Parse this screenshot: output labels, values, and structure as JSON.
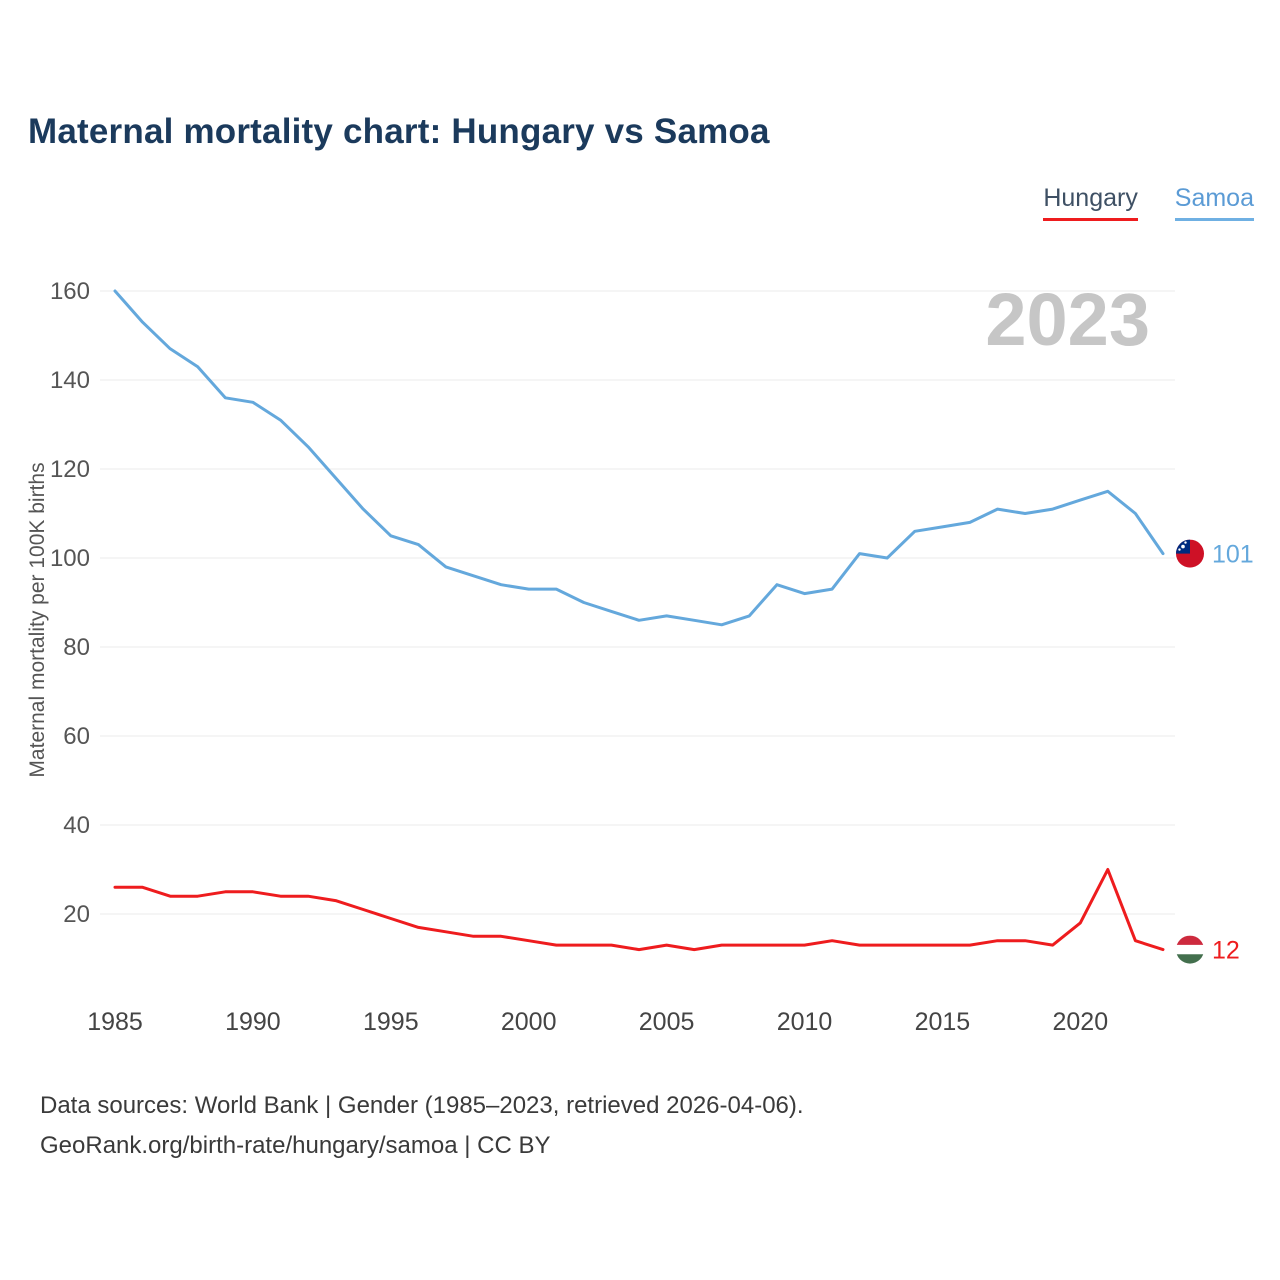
{
  "page": {
    "title": "Maternal mortality chart: Hungary vs Samoa",
    "watermark": "2023",
    "footer_line1": "Data sources: World Bank | Gender (1985–2023, retrieved 2026-04-06).",
    "footer_line2": "GeoRank.org/birth-rate/hungary/samoa | CC BY"
  },
  "legend": [
    {
      "label": "Hungary",
      "underline_color": "#ee1c1e",
      "text_color": "#3e5064"
    },
    {
      "label": "Samoa",
      "underline_color": "#6fb0e3",
      "text_color": "#5b9bd5"
    }
  ],
  "chart_data": {
    "type": "line",
    "title": "Maternal mortality chart: Hungary vs Samoa",
    "xlabel": "",
    "ylabel": "Maternal mortality per 100K births",
    "grid": true,
    "legend_position": "top-right",
    "ylim": [
      0,
      165
    ],
    "y_ticks": [
      20,
      40,
      60,
      80,
      100,
      120,
      140,
      160
    ],
    "x_ticks": [
      1985,
      1990,
      1995,
      2000,
      2005,
      2010,
      2015,
      2020
    ],
    "x": [
      1985,
      1986,
      1987,
      1988,
      1989,
      1990,
      1991,
      1992,
      1993,
      1994,
      1995,
      1996,
      1997,
      1998,
      1999,
      2000,
      2001,
      2002,
      2003,
      2004,
      2005,
      2006,
      2007,
      2008,
      2009,
      2010,
      2011,
      2012,
      2013,
      2014,
      2015,
      2016,
      2017,
      2018,
      2019,
      2020,
      2021,
      2022,
      2023
    ],
    "series": [
      {
        "name": "Samoa",
        "color": "#64a8dc",
        "flag_icon": "samoa-flag-icon",
        "end_label": "101",
        "values": [
          160,
          153,
          147,
          143,
          136,
          135,
          131,
          125,
          118,
          111,
          105,
          103,
          98,
          96,
          94,
          93,
          93,
          90,
          88,
          86,
          87,
          86,
          85,
          87,
          94,
          92,
          93,
          101,
          100,
          106,
          107,
          108,
          111,
          110,
          111,
          113,
          115,
          110,
          101
        ]
      },
      {
        "name": "Hungary",
        "color": "#ee1c1e",
        "flag_icon": "hungary-flag-icon",
        "end_label": "12",
        "values": [
          26,
          26,
          24,
          24,
          25,
          25,
          24,
          24,
          23,
          21,
          19,
          17,
          16,
          15,
          15,
          14,
          13,
          13,
          13,
          12,
          13,
          12,
          13,
          13,
          13,
          13,
          14,
          13,
          13,
          13,
          13,
          13,
          14,
          14,
          13,
          18,
          30,
          14,
          12
        ]
      }
    ]
  }
}
